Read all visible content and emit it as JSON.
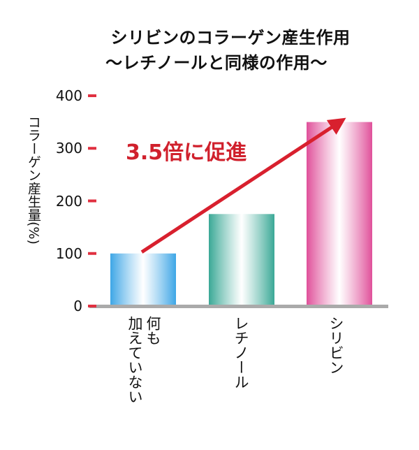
{
  "chart_data": {
    "type": "bar",
    "title": "シリビンのコラーゲン産生作用",
    "subtitle": "〜レチノールと同様の作用〜",
    "ylabel": "コラーゲン産生量(%)",
    "xlabel": "",
    "ylim": [
      0,
      400
    ],
    "yticks": [
      "0",
      "100",
      "200",
      "300",
      "400"
    ],
    "categories": [
      "何も\n加えていない",
      "レチノール",
      "シリビン"
    ],
    "values": [
      100,
      175,
      350
    ],
    "grid": false,
    "annotation": "3.5倍に促進",
    "colors": {
      "bar_1": "#3ea6e6",
      "bar_2": "#3aa896",
      "bar_3": "#e0509a",
      "arrow": "#d8202e",
      "tick": "#e03040",
      "baseline": "#aaaaaa"
    }
  }
}
